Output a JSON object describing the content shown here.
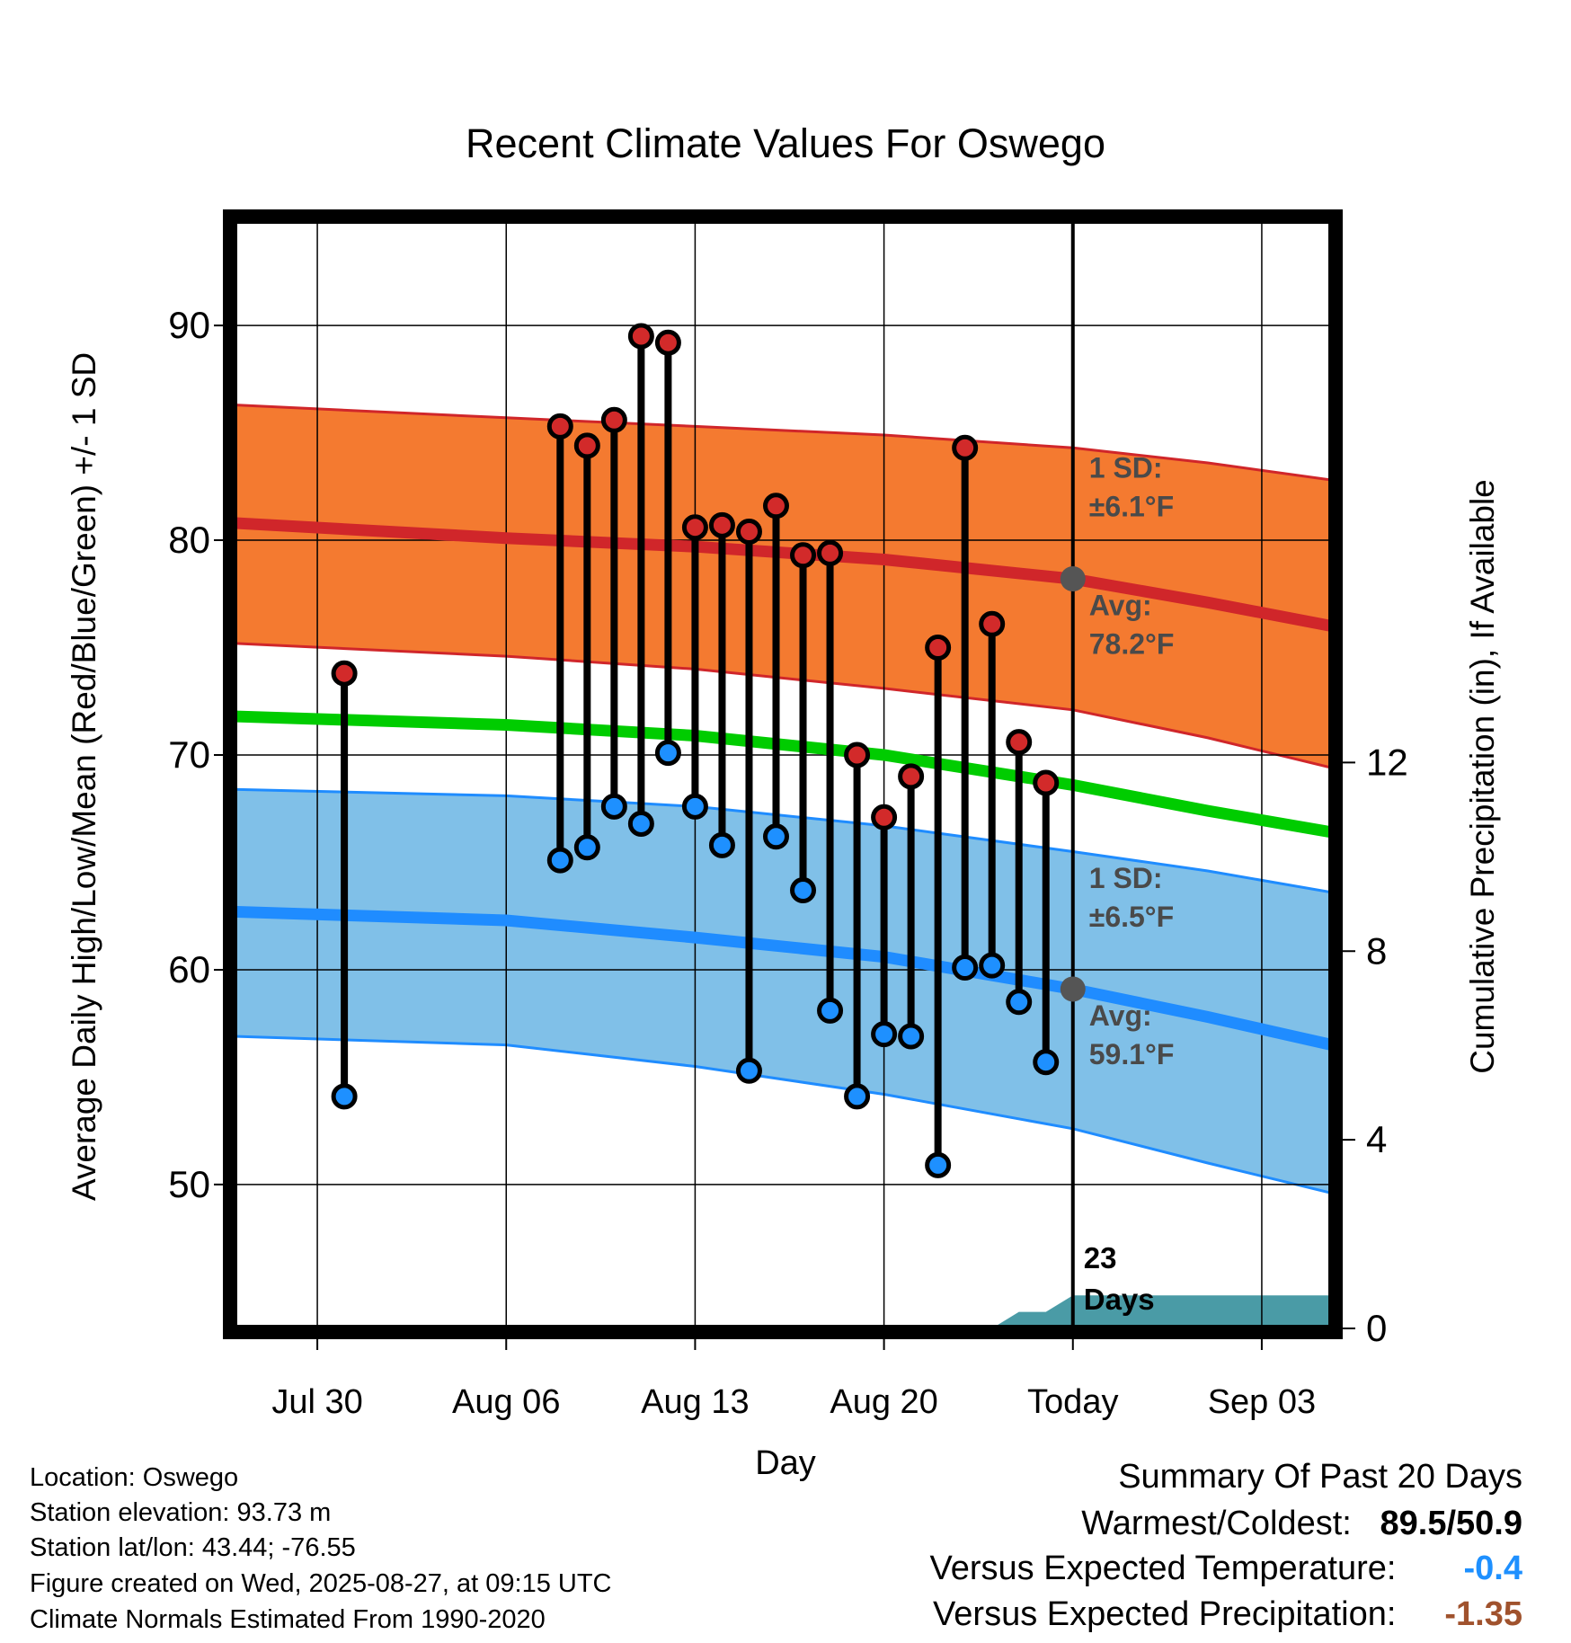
{
  "chart_data": {
    "type": "line",
    "title": "Recent Climate Values For Oswego",
    "xlabel": "Day",
    "ylabel": "Average Daily High/Low/Mean (Red/Blue/Green) +/- 1 SD",
    "y2label": "Cumulative Precipitation (in), If Available",
    "x_ticks": [
      "Jul 30",
      "Aug 06",
      "Aug 13",
      "Aug 20",
      "Today",
      "Sep 03"
    ],
    "x_tick_days": [
      -28,
      -21,
      -14,
      -7,
      0,
      7
    ],
    "xlim": [
      -31.1,
      9.6
    ],
    "ylim": [
      43.3,
      94.9
    ],
    "y_ticks": [
      50,
      60,
      70,
      80,
      90
    ],
    "y2lim": [
      0,
      23.5
    ],
    "y2_ticks": [
      0,
      4,
      8,
      12
    ],
    "grid": true,
    "normals": {
      "x": [
        -31.1,
        -21,
        -14,
        -7,
        0,
        5,
        9.6
      ],
      "high_upper": [
        86.3,
        85.7,
        85.3,
        84.9,
        84.3,
        83.6,
        82.8
      ],
      "high_mean": [
        80.8,
        80.1,
        79.7,
        79.1,
        78.2,
        77.1,
        76.0
      ],
      "high_lower": [
        75.2,
        74.6,
        74.0,
        73.1,
        72.1,
        70.8,
        69.4
      ],
      "mean_line": [
        71.8,
        71.4,
        70.9,
        70.0,
        68.6,
        67.4,
        66.4
      ],
      "low_upper": [
        68.4,
        68.1,
        67.6,
        66.7,
        65.5,
        64.6,
        63.6
      ],
      "low_mean": [
        62.7,
        62.3,
        61.5,
        60.6,
        59.1,
        57.8,
        56.5
      ],
      "low_lower": [
        56.9,
        56.5,
        55.5,
        54.2,
        52.6,
        51.0,
        49.6
      ]
    },
    "series": [
      {
        "x": [
          -27,
          -19,
          -18,
          -17,
          -16,
          -15,
          -14,
          -13,
          -12,
          -11,
          -10,
          -9,
          -8,
          -7,
          -6,
          -5,
          -4,
          -3,
          -2,
          -1
        ],
        "high": [
          73.8,
          85.3,
          84.4,
          85.6,
          89.5,
          89.2,
          80.6,
          80.7,
          80.4,
          81.6,
          79.3,
          79.4,
          70.0,
          67.1,
          69.0,
          75.0,
          84.3,
          76.1,
          70.6,
          68.7
        ],
        "low": [
          54.1,
          65.1,
          65.7,
          67.6,
          66.8,
          70.1,
          67.6,
          65.8,
          55.3,
          66.2,
          63.7,
          58.1,
          54.1,
          57.0,
          56.9,
          50.9,
          60.1,
          60.2,
          58.5,
          55.7
        ]
      },
      {
        "x": [
          -7,
          -3,
          -2,
          -1,
          0,
          9.6
        ],
        "values": [
          0,
          0,
          0.35,
          0.35,
          0.7,
          0.7
        ]
      }
    ],
    "precip_start_day": -7.8,
    "today_day": 0,
    "annotations": {
      "high_sd": [
        "1 SD:",
        "±6.1°F"
      ],
      "high_avg": [
        "Avg:",
        "78.2°F"
      ],
      "low_sd": [
        "1 SD:",
        "±6.5°F"
      ],
      "low_avg": [
        "Avg:",
        "59.1°F"
      ],
      "days": [
        "23",
        "Days"
      ]
    },
    "colors": {
      "high_band": "#f47a30",
      "high_line": "#d0262a",
      "mean_line": "#00cc00",
      "low_band": "#80c0e8",
      "low_line": "#1f8cff",
      "precip": "#4a9ba6",
      "high_marker": "#d22a2a",
      "low_marker": "#1e90ff",
      "annotation": "#4a4a4a"
    }
  },
  "info": {
    "location": "Location: Oswego",
    "elevation": "Station elevation: 93.73 m",
    "latlon": "Station lat/lon: 43.44; -76.55",
    "created": "Figure created on Wed, 2025-08-27, at 09:15 UTC",
    "normals": "Climate Normals Estimated From 1990-2020"
  },
  "summary": {
    "title": "Summary Of Past 20 Days",
    "warmest_label": "Warmest/Coldest:",
    "warmest_value": "89.5/50.9",
    "temp_label": "Versus Expected Temperature:",
    "temp_value": "-0.4",
    "temp_color": "#1e90ff",
    "precip_label": "Versus Expected Precipitation:",
    "precip_value": "-1.35",
    "precip_color": "#a0522d"
  }
}
